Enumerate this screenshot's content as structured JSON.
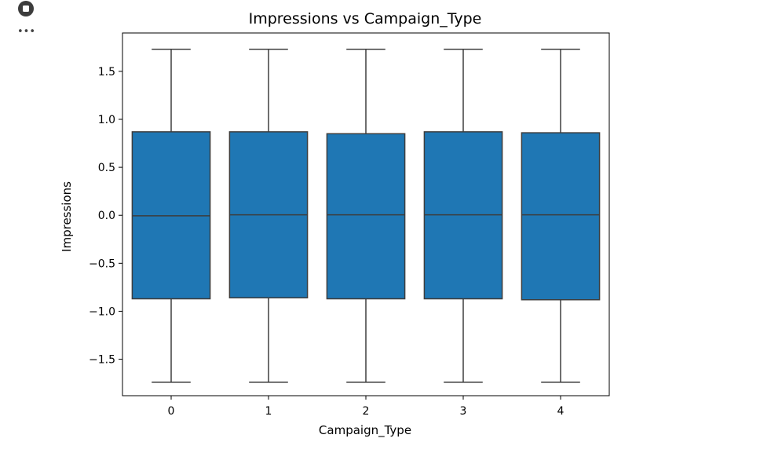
{
  "cell": {
    "stop_icon": "stop-circle-icon",
    "more_icon": "more-horiz-icon",
    "more_glyph": "•••"
  },
  "chart_data": {
    "type": "box",
    "title": "Impressions vs Campaign_Type",
    "xlabel": "Campaign_Type",
    "ylabel": "Impressions",
    "categories": [
      "0",
      "1",
      "2",
      "3",
      "4"
    ],
    "ylim": [
      -1.88,
      1.9
    ],
    "yticks": [
      -1.5,
      -1.0,
      -0.5,
      0.0,
      0.5,
      1.0,
      1.5
    ],
    "ytick_labels": [
      "−1.5",
      "−1.0",
      "−0.5",
      "0.0",
      "0.5",
      "1.0",
      "1.5"
    ],
    "grid": false,
    "colors": {
      "box": "#1f77b4",
      "line": "#3d3d3d"
    },
    "boxes": [
      {
        "category": "0",
        "whisker_low": -1.74,
        "q1": -0.87,
        "median": -0.005,
        "q3": 0.87,
        "whisker_high": 1.73
      },
      {
        "category": "1",
        "whisker_low": -1.74,
        "q1": -0.86,
        "median": 0.005,
        "q3": 0.87,
        "whisker_high": 1.73
      },
      {
        "category": "2",
        "whisker_low": -1.74,
        "q1": -0.87,
        "median": 0.005,
        "q3": 0.85,
        "whisker_high": 1.73
      },
      {
        "category": "3",
        "whisker_low": -1.74,
        "q1": -0.87,
        "median": 0.005,
        "q3": 0.87,
        "whisker_high": 1.73
      },
      {
        "category": "4",
        "whisker_low": -1.74,
        "q1": -0.88,
        "median": 0.005,
        "q3": 0.86,
        "whisker_high": 1.73
      }
    ]
  }
}
